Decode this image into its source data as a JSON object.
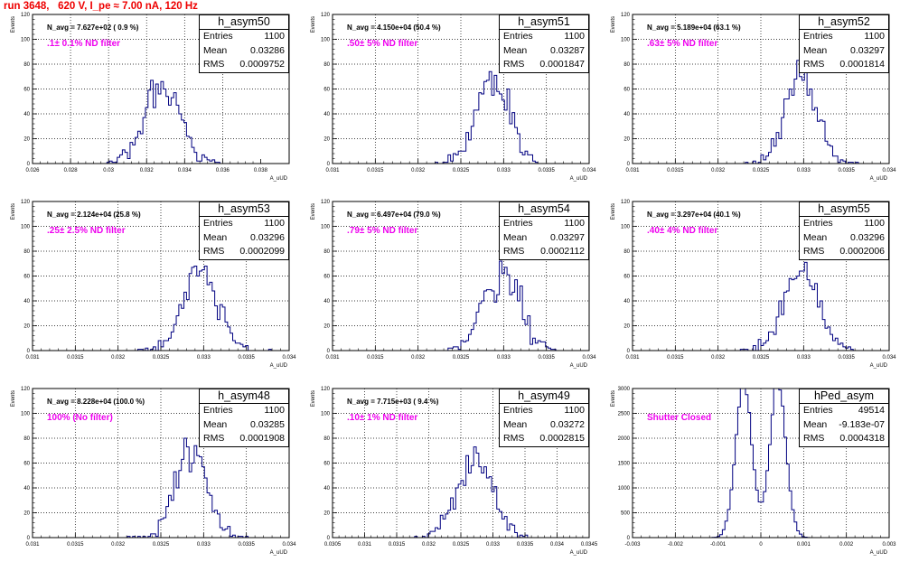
{
  "title": "run 3648,   620 V, I_pe ≈ 7.00 nA, 120 Hz",
  "colors": {
    "title": "#ee0000",
    "histogram": "#000080",
    "filter_label": "#ee00ee",
    "grid": "#000000"
  },
  "chart_data": [
    {
      "type": "histogram",
      "name": "h_asym50",
      "navg": "N_avg = 7.627e+02 ( 0.9 %)",
      "filter": ".1± 0.1% ND filter",
      "stats": {
        "entries": "1100",
        "mean": "0.03286",
        "rms": "0.0009752"
      },
      "xlabel": "A_uUD",
      "ylabel": "Events",
      "xlim": [
        0.026,
        0.0395
      ],
      "ylim": [
        0,
        120
      ],
      "xticks": [
        0.026,
        0.028,
        0.03,
        0.032,
        0.034,
        0.036,
        0.038
      ],
      "xtick_labels": [
        "0.026",
        "0.028",
        "0.03",
        "0.032",
        "0.034",
        "0.036",
        "0.038"
      ],
      "yticks": [
        0,
        20,
        40,
        60,
        80,
        100,
        120
      ],
      "ytick_labels": [
        "0",
        "20",
        "40",
        "60",
        "80",
        "100",
        "120"
      ],
      "gen": {
        "mean": 0.03286,
        "rms": 0.00095,
        "n": 1100,
        "nbins": 100,
        "seed": 11
      }
    },
    {
      "type": "histogram",
      "name": "h_asym51",
      "navg": "N_avg = 4.150e+04 (50.4 %)",
      "filter": ".50± 5% ND filter",
      "stats": {
        "entries": "1100",
        "mean": "0.03287",
        "rms": "0.0001847"
      },
      "xlabel": "A_uUD",
      "ylabel": "Events",
      "xlim": [
        0.031,
        0.034
      ],
      "ylim": [
        0,
        120
      ],
      "xticks": [
        0.031,
        0.0315,
        0.032,
        0.0325,
        0.033,
        0.0335,
        0.034
      ],
      "xtick_labels": [
        "0.031",
        "0.0315",
        "0.032",
        "0.0325",
        "0.033",
        "0.0335",
        "0.034"
      ],
      "yticks": [
        0,
        20,
        40,
        60,
        80,
        100,
        120
      ],
      "ytick_labels": [
        "0",
        "20",
        "40",
        "60",
        "80",
        "100",
        "120"
      ],
      "gen": {
        "mean": 0.03287,
        "rms": 0.000185,
        "n": 1100,
        "nbins": 100,
        "seed": 22
      }
    },
    {
      "type": "histogram",
      "name": "h_asym52",
      "navg": "N_avg = 5.189e+04 (63.1 %)",
      "filter": ".63± 5% ND filter",
      "stats": {
        "entries": "1100",
        "mean": "0.03297",
        "rms": "0.0001814"
      },
      "xlabel": "A_uUD",
      "ylabel": "Events",
      "xlim": [
        0.031,
        0.034
      ],
      "ylim": [
        0,
        120
      ],
      "xticks": [
        0.031,
        0.0315,
        0.032,
        0.0325,
        0.033,
        0.0335,
        0.034
      ],
      "xtick_labels": [
        "0.031",
        "0.0315",
        "0.032",
        "0.0325",
        "0.033",
        "0.0335",
        "0.034"
      ],
      "yticks": [
        0,
        20,
        40,
        60,
        80,
        100,
        120
      ],
      "ytick_labels": [
        "0",
        "20",
        "40",
        "60",
        "80",
        "100",
        "120"
      ],
      "gen": {
        "mean": 0.03297,
        "rms": 0.000181,
        "n": 1100,
        "nbins": 100,
        "seed": 33
      }
    },
    {
      "type": "histogram",
      "name": "h_asym53",
      "navg": "N_avg = 2.124e+04 (25.8 %)",
      "filter": ".25± 2.5% ND filter",
      "stats": {
        "entries": "1100",
        "mean": "0.03296",
        "rms": "0.0002099"
      },
      "xlabel": "A_uUD",
      "ylabel": "Events",
      "xlim": [
        0.031,
        0.034
      ],
      "ylim": [
        0,
        120
      ],
      "xticks": [
        0.031,
        0.0315,
        0.032,
        0.0325,
        0.033,
        0.0335,
        0.034
      ],
      "xtick_labels": [
        "0.031",
        "0.0315",
        "0.032",
        "0.0325",
        "0.033",
        "0.0335",
        "0.034"
      ],
      "yticks": [
        0,
        20,
        40,
        60,
        80,
        100,
        120
      ],
      "ytick_labels": [
        "0",
        "20",
        "40",
        "60",
        "80",
        "100",
        "120"
      ],
      "gen": {
        "mean": 0.03296,
        "rms": 0.00021,
        "n": 1100,
        "nbins": 100,
        "seed": 44
      }
    },
    {
      "type": "histogram",
      "name": "h_asym54",
      "navg": "N_avg = 6.497e+04 (79.0 %)",
      "filter": ".79± 5% ND filter",
      "stats": {
        "entries": "1100",
        "mean": "0.03297",
        "rms": "0.0002112"
      },
      "xlabel": "A_uUD",
      "ylabel": "Events",
      "xlim": [
        0.031,
        0.034
      ],
      "ylim": [
        0,
        120
      ],
      "xticks": [
        0.031,
        0.0315,
        0.032,
        0.0325,
        0.033,
        0.0335,
        0.034
      ],
      "xtick_labels": [
        "0.031",
        "0.0315",
        "0.032",
        "0.0325",
        "0.033",
        "0.0335",
        "0.034"
      ],
      "yticks": [
        0,
        20,
        40,
        60,
        80,
        100,
        120
      ],
      "ytick_labels": [
        "0",
        "20",
        "40",
        "60",
        "80",
        "100",
        "120"
      ],
      "gen": {
        "mean": 0.03297,
        "rms": 0.000211,
        "n": 1100,
        "nbins": 100,
        "seed": 55
      }
    },
    {
      "type": "histogram",
      "name": "h_asym55",
      "navg": "N_avg = 3.297e+04 (40.1 %)",
      "filter": ".40± 4% ND filter",
      "stats": {
        "entries": "1100",
        "mean": "0.03296",
        "rms": "0.0002006"
      },
      "xlabel": "A_uUD",
      "ylabel": "Events",
      "xlim": [
        0.031,
        0.034
      ],
      "ylim": [
        0,
        120
      ],
      "xticks": [
        0.031,
        0.0315,
        0.032,
        0.0325,
        0.033,
        0.0335,
        0.034
      ],
      "xtick_labels": [
        "0.031",
        "0.0315",
        "0.032",
        "0.0325",
        "0.033",
        "0.0335",
        "0.034"
      ],
      "yticks": [
        0,
        20,
        40,
        60,
        80,
        100,
        120
      ],
      "ytick_labels": [
        "0",
        "20",
        "40",
        "60",
        "80",
        "100",
        "120"
      ],
      "gen": {
        "mean": 0.03296,
        "rms": 0.0002,
        "n": 1100,
        "nbins": 100,
        "seed": 66
      }
    },
    {
      "type": "histogram",
      "name": "h_asym48",
      "navg": "N_avg = 8.228e+04 (100.0 %)",
      "filter": "100% (No filter)",
      "stats": {
        "entries": "1100",
        "mean": "0.03285",
        "rms": "0.0001908"
      },
      "xlabel": "A_uUD",
      "ylabel": "Events",
      "xlim": [
        0.031,
        0.034
      ],
      "ylim": [
        0,
        120
      ],
      "xticks": [
        0.031,
        0.0315,
        0.032,
        0.0325,
        0.033,
        0.0335,
        0.034
      ],
      "xtick_labels": [
        "0.031",
        "0.0315",
        "0.032",
        "0.0325",
        "0.033",
        "0.0335",
        "0.034"
      ],
      "yticks": [
        0,
        20,
        40,
        60,
        80,
        100,
        120
      ],
      "ytick_labels": [
        "0",
        "20",
        "40",
        "60",
        "80",
        "100",
        "120"
      ],
      "gen": {
        "mean": 0.03285,
        "rms": 0.00019,
        "n": 1100,
        "nbins": 100,
        "seed": 77
      }
    },
    {
      "type": "histogram",
      "name": "h_asym49",
      "navg": "N_avg = 7.715e+03 ( 9.4 %)",
      "filter": ".10± 1% ND filter",
      "stats": {
        "entries": "1100",
        "mean": "0.03272",
        "rms": "0.0002815"
      },
      "xlabel": "A_uUD",
      "ylabel": "Events",
      "xlim": [
        0.0305,
        0.0345
      ],
      "ylim": [
        0,
        120
      ],
      "xticks": [
        0.0305,
        0.031,
        0.0315,
        0.032,
        0.0325,
        0.033,
        0.0335,
        0.034,
        0.0345
      ],
      "xtick_labels": [
        "0.0305",
        "0.031",
        "0.0315",
        "0.032",
        "0.0325",
        "0.033",
        "0.0335",
        "0.034",
        "0.0345"
      ],
      "yticks": [
        0,
        20,
        40,
        60,
        80,
        100,
        120
      ],
      "ytick_labels": [
        "0",
        "20",
        "40",
        "60",
        "80",
        "100",
        "120"
      ],
      "gen": {
        "mean": 0.03272,
        "rms": 0.00028,
        "n": 1100,
        "nbins": 100,
        "seed": 88
      }
    },
    {
      "type": "histogram",
      "name": "hPed_asym",
      "navg": "",
      "filter": "Shutter Closed",
      "stats": {
        "entries": "49514",
        "mean": "-9.183e-07",
        "rms": "0.0004318"
      },
      "xlabel": "A_uUD",
      "ylabel": "Events",
      "xlim": [
        -0.003,
        0.003
      ],
      "ylim": [
        0,
        3000
      ],
      "xticks": [
        -0.003,
        -0.002,
        -0.001,
        0,
        0.001,
        0.002,
        0.003
      ],
      "xtick_labels": [
        "-0.003",
        "-0.002",
        "-0.001",
        "0",
        "0.001",
        "0.002",
        "0.003"
      ],
      "yticks": [
        0,
        500,
        1000,
        1500,
        2000,
        2500,
        3000
      ],
      "ytick_labels": [
        "0",
        "500",
        "1000",
        "1500",
        "2000",
        "2500",
        "3000"
      ],
      "gen": {
        "bimodal": true,
        "peaks": [
          -0.0004,
          0.0004
        ],
        "peak_rms": 0.00019,
        "n": 49514,
        "nbins": 100,
        "seed": 99
      }
    }
  ],
  "labels": {
    "entries": "Entries",
    "mean": "Mean",
    "rms": "RMS"
  }
}
